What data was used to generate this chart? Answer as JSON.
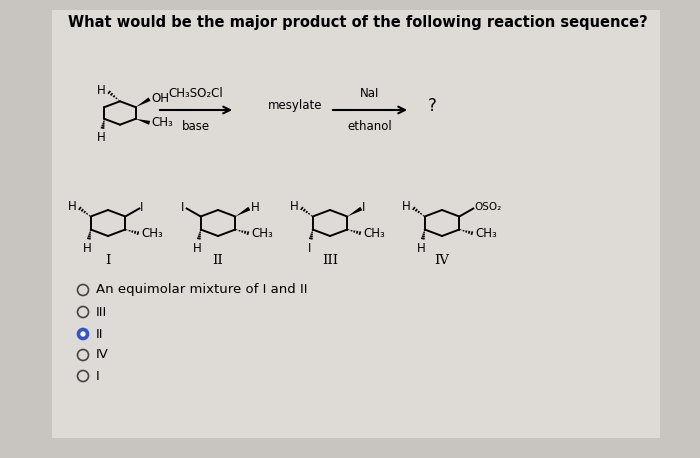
{
  "title": "What would be the major product of the following reaction sequence?",
  "title_fontsize": 10.5,
  "bg_color": "#c8c4c0",
  "panel_bg": "#dedad6",
  "reaction_arrow1_label_top": "CH₃SO₂Cl",
  "reaction_arrow1_label_bottom": "base",
  "reaction_arrow1_mid_label": "mesylate",
  "reaction_arrow2_label_top": "NaI",
  "reaction_arrow2_label_bottom": "ethanol",
  "question_mark": "?",
  "options": [
    {
      "text": "An equimolar mixture of I and II",
      "selected": false
    },
    {
      "text": "III",
      "selected": false
    },
    {
      "text": "II",
      "selected": true
    },
    {
      "text": "IV",
      "selected": false
    },
    {
      "text": "I",
      "selected": false
    }
  ],
  "compound_labels": [
    "I",
    "II",
    "III",
    "IV"
  ],
  "radio_color_unselected": "#444444",
  "radio_color_selected": "#3355aa",
  "radio_fill_selected": "#3355cc"
}
